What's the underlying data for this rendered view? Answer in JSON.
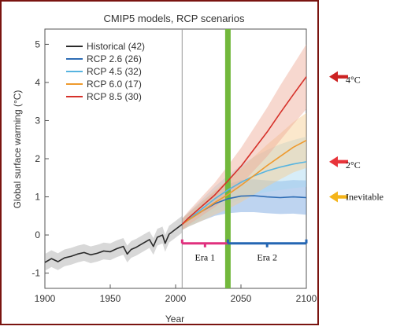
{
  "chart_data": {
    "type": "line",
    "title": "CMIP5 models, RCP scenarios",
    "xlabel": "Year",
    "ylabel": "Global surface warming (°C)",
    "xlim": [
      1900,
      2100
    ],
    "ylim": [
      -1.4,
      5.4
    ],
    "xticks": [
      "1900",
      "1950",
      "2000",
      "2050",
      "2100"
    ],
    "yticks": [
      "-1",
      "0",
      "1",
      "2",
      "3",
      "4",
      "5"
    ],
    "grid": false,
    "legend_position": "top-left",
    "legend": [
      {
        "label": "Historical (42)",
        "color": "#2a2a2a"
      },
      {
        "label": "RCP 2.6 (26)",
        "color": "#2f6db5"
      },
      {
        "label": "RCP 4.5 (32)",
        "color": "#57b4e0"
      },
      {
        "label": "RCP 6.0 (17)",
        "color": "#ee9a2e"
      },
      {
        "label": "RCP 8.5 (30)",
        "color": "#d6312a"
      }
    ],
    "series": [
      {
        "name": "Historical (42)",
        "color": "#2a2a2a",
        "band_color": "#a8a8a8",
        "x": [
          1900,
          1905,
          1910,
          1915,
          1920,
          1925,
          1930,
          1935,
          1940,
          1945,
          1950,
          1955,
          1960,
          1963,
          1966,
          1970,
          1975,
          1980,
          1983,
          1986,
          1990,
          1992,
          1995,
          2000,
          2005
        ],
        "y": [
          -0.72,
          -0.62,
          -0.7,
          -0.6,
          -0.56,
          -0.5,
          -0.46,
          -0.52,
          -0.48,
          -0.42,
          -0.44,
          -0.36,
          -0.3,
          -0.5,
          -0.38,
          -0.32,
          -0.22,
          -0.12,
          -0.3,
          -0.06,
          0.0,
          -0.22,
          0.02,
          0.15,
          0.28
        ],
        "band": [
          0.22,
          0.22,
          0.22,
          0.22,
          0.22,
          0.22,
          0.22,
          0.22,
          0.22,
          0.22,
          0.22,
          0.22,
          0.22,
          0.22,
          0.22,
          0.22,
          0.22,
          0.22,
          0.22,
          0.22,
          0.22,
          0.22,
          0.22,
          0.22,
          0.22
        ]
      },
      {
        "name": "RCP 2.6 (26)",
        "color": "#2f6db5",
        "band_color": "#6f9fdd",
        "x": [
          2005,
          2010,
          2020,
          2030,
          2040,
          2050,
          2060,
          2070,
          2080,
          2090,
          2100
        ],
        "y": [
          0.28,
          0.4,
          0.62,
          0.82,
          0.95,
          1.02,
          1.03,
          1.0,
          0.98,
          1.0,
          0.98
        ],
        "band": [
          0.15,
          0.18,
          0.25,
          0.32,
          0.38,
          0.42,
          0.43,
          0.43,
          0.43,
          0.44,
          0.45
        ]
      },
      {
        "name": "RCP 4.5 (32)",
        "color": "#57b4e0",
        "band_color": "#a7d8f0",
        "x": [
          2005,
          2010,
          2020,
          2030,
          2040,
          2050,
          2060,
          2070,
          2080,
          2090,
          2100
        ],
        "y": [
          0.28,
          0.42,
          0.68,
          0.95,
          1.18,
          1.38,
          1.55,
          1.68,
          1.78,
          1.86,
          1.92
        ],
        "band": [
          0.15,
          0.18,
          0.25,
          0.32,
          0.38,
          0.45,
          0.5,
          0.55,
          0.6,
          0.63,
          0.66
        ]
      },
      {
        "name": "RCP 6.0 (17)",
        "color": "#ee9a2e",
        "band_color": "#f6cc8e",
        "x": [
          2005,
          2010,
          2020,
          2030,
          2040,
          2050,
          2060,
          2070,
          2080,
          2090,
          2100
        ],
        "y": [
          0.28,
          0.4,
          0.62,
          0.85,
          1.06,
          1.3,
          1.56,
          1.82,
          2.06,
          2.3,
          2.48
        ],
        "band": [
          0.15,
          0.18,
          0.25,
          0.32,
          0.38,
          0.44,
          0.5,
          0.55,
          0.6,
          0.66,
          0.72
        ]
      },
      {
        "name": "RCP 8.5 (30)",
        "color": "#d6312a",
        "band_color": "#eea894",
        "x": [
          2005,
          2010,
          2020,
          2030,
          2040,
          2050,
          2060,
          2070,
          2080,
          2090,
          2100
        ],
        "y": [
          0.28,
          0.45,
          0.75,
          1.05,
          1.42,
          1.8,
          2.25,
          2.7,
          3.2,
          3.68,
          4.15
        ],
        "band": [
          0.15,
          0.18,
          0.25,
          0.32,
          0.4,
          0.48,
          0.56,
          0.64,
          0.72,
          0.78,
          0.85
        ]
      }
    ],
    "reference_lines": [
      {
        "x": 2005,
        "color": "#9a9a9a"
      },
      {
        "x": 2040,
        "color": "#72b83c"
      }
    ],
    "eras": [
      {
        "label": "Era 1",
        "from": 2005,
        "to": 2040,
        "y": -0.22,
        "color": "#e0307e"
      },
      {
        "label": "Era 2",
        "from": 2040,
        "to": 2100,
        "y": -0.22,
        "color": "#2466b3"
      }
    ],
    "annotations": [
      {
        "label": "4°C",
        "y": 4.15,
        "arrow_color": "#cc2222"
      },
      {
        "label": "2°C",
        "y": 1.92,
        "arrow_color": "#e8343a"
      },
      {
        "label": "Inevitable",
        "y": 1.0,
        "arrow_color": "#f4b41a"
      }
    ]
  }
}
